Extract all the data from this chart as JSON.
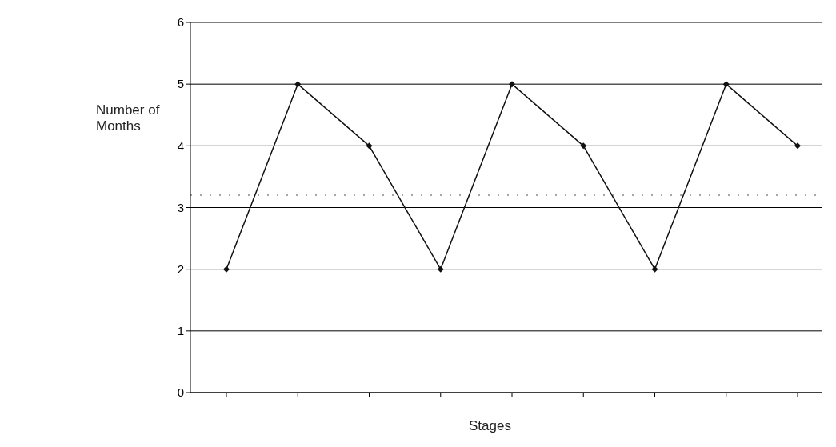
{
  "chart_data": {
    "type": "line",
    "xlabel": "Stages",
    "ylabel": "Number of Months",
    "categories": [
      null,
      null,
      null,
      null,
      null,
      null,
      null,
      null,
      null
    ],
    "series": [
      {
        "color": "#111111",
        "values": [
          2,
          5,
          4,
          2,
          5,
          4,
          2,
          5,
          4
        ]
      }
    ],
    "ylim": [
      0,
      6
    ],
    "yticks": [
      0,
      1,
      2,
      3,
      4,
      5,
      6
    ],
    "grid": "y",
    "marker": "diamond",
    "line_style": "solid",
    "ref_lines": [
      {
        "axis": "y",
        "value": 3.2,
        "color": "#888888",
        "line_style": "dotted"
      }
    ]
  }
}
